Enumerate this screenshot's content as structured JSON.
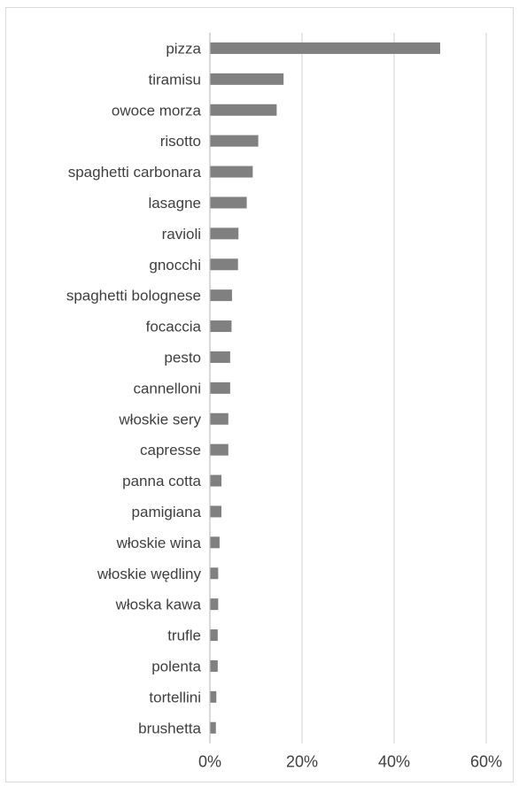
{
  "chart_data": {
    "type": "bar",
    "orientation": "horizontal",
    "title": "",
    "xlabel": "",
    "ylabel": "",
    "categories": [
      "pizza",
      "tiramisu",
      "owoce morza",
      "risotto",
      "spaghetti carbonara",
      "lasagne",
      "ravioli",
      "gnocchi",
      "spaghetti bolognese",
      "focaccia",
      "pesto",
      "cannelloni",
      "włoskie sery",
      "capresse",
      "panna cotta",
      "pamigiana",
      "włoskie wina",
      "włoskie wędliny",
      "włoska kawa",
      "trufle",
      "polenta",
      "tortellini",
      "brushetta"
    ],
    "values": [
      50,
      16,
      14.5,
      10.5,
      9.3,
      8,
      6.2,
      6.1,
      4.8,
      4.7,
      4.4,
      4.4,
      4,
      4,
      2.5,
      2.5,
      2.1,
      1.8,
      1.8,
      1.7,
      1.7,
      1.4,
      1.3
    ],
    "xlim": [
      0,
      60
    ],
    "xticks": [
      0,
      20,
      40,
      60
    ],
    "xtick_labels": [
      "0%",
      "20%",
      "40%",
      "60%"
    ],
    "grid": true,
    "legend": "none",
    "colors": {
      "bar": "#808080",
      "grid": "#d9d9d9",
      "text": "#404040"
    }
  }
}
